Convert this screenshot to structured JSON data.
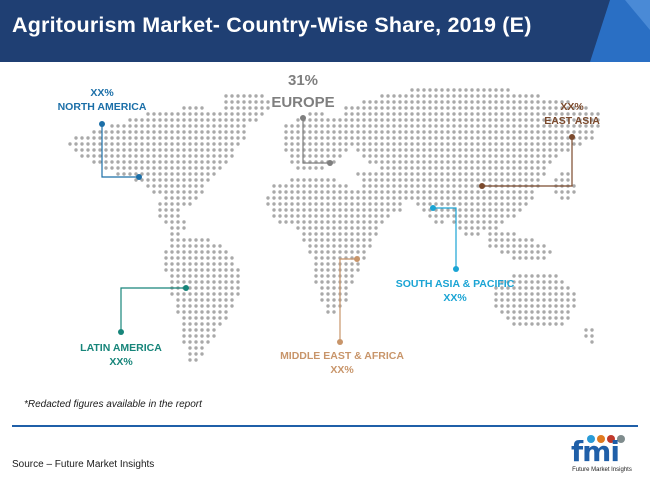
{
  "title": "Agritourism Market- Country-Wise Share, 2019 (E)",
  "colors": {
    "header_bg": "#1f3f73",
    "header_accent": "#2a6fc4",
    "dots": "#a9a9a9",
    "north_america": "#1b6fa8",
    "europe": "#7f7f7f",
    "east_asia": "#7b4a2d",
    "south_asia_pacific": "#1aa4d4",
    "middle_east_africa": "#c8956a",
    "latin_america": "#17857a"
  },
  "regions": {
    "north_america": {
      "name": "NORTH AMERICA",
      "value": "XX%"
    },
    "europe": {
      "name": "EUROPE",
      "value": "31%"
    },
    "east_asia": {
      "name": "EAST ASIA",
      "value": "XX%"
    },
    "south_asia_pacific": {
      "name": "SOUTH ASIA & PACIFIC",
      "value": "XX%"
    },
    "middle_east_africa": {
      "name": "MIDDLE EAST & AFRICA",
      "value": "XX%"
    },
    "latin_america": {
      "name": "LATIN AMERICA",
      "value": "XX%"
    }
  },
  "note": "*Redacted figures available in the report",
  "source": "Source – Future Market Insights",
  "logo": {
    "text": "fmi",
    "subtitle": "Future Market Insights"
  }
}
